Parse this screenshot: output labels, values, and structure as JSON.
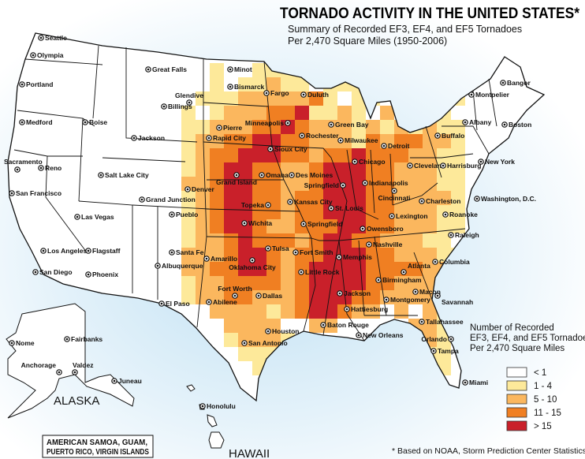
{
  "title": "TORNADO ACTIVITY IN THE UNITED STATES*",
  "subtitle_line1": "Summary  of Recorded EF3, EF4, and EF5 Tornadoes",
  "subtitle_line2": "Per 2,470 Square Miles (1950-2006)",
  "legend": {
    "title_line1": "Number of Recorded",
    "title_line2": "EF3, EF4, and EF5 Tornadoes",
    "title_line3": "Per 2,470 Square Miles",
    "items": [
      {
        "label": "< 1",
        "color": "#ffffff"
      },
      {
        "label": "1 - 4",
        "color": "#fde99a"
      },
      {
        "label": "5 - 10",
        "color": "#fbb75e"
      },
      {
        "label": "11 - 15",
        "color": "#f07f22"
      },
      {
        "label": "> 15",
        "color": "#c9202a"
      }
    ]
  },
  "heat_grid_levels": [
    "..1..1111..1........",
    "..1.11211.111..1.1..",
    ".1112222231.11..1.11",
    "1.12223341121.2.1.1.",
    "11222334322212121211",
    "12233443322213233221",
    "12334443323343332211",
    "12344332234443322211",
    "22344332234443322211",
    "12344332334443322221",
    "12344332334443322211",
    "12344322333443322211",
    "1223433323443322211.",
    "22234432334443322211",
    "22334432344443333221",
    "12233332344443322211",
    "1223322234443322221.",
    "..222212344322.2.21.",
    "...2222..22.....221.",
    "...12221.........21.",
    "....1111.........11.",
    ".....11...........1."
  ],
  "cities": [
    "Seattle",
    "Olympia",
    "Portland",
    "Medford",
    "Boise",
    "Sacramento",
    "Reno",
    "San Francisco",
    "Las Vegas",
    "Los Angeles",
    "San Diego",
    "Salt Lake City",
    "Flagstaff",
    "Phoenix",
    "Great Falls",
    "Glendive",
    "Billings",
    "Jackson",
    "Denver",
    "Grand Junction",
    "Pueblo",
    "Santa Fe",
    "Albuquerque",
    "El Paso",
    "Minot",
    "Bismarck",
    "Fargo",
    "Duluth",
    "Pierre",
    "Rapid City",
    "Minneapolis",
    "Rochester",
    "Green Bay",
    "Milwaukee",
    "Sioux City",
    "Omaha",
    "Des Moines",
    "Grand Island",
    "Chicago",
    "Detroit",
    "Cleveland",
    "Buffalo",
    "Albany",
    "Montpelier",
    "Bangor",
    "Boston",
    "New York",
    "Harrisburg",
    "Washington, D.C.",
    "Springfield",
    "Indianapolis",
    "Cincinnati",
    "Charleston",
    "Roanoke",
    "Raleigh",
    "Topeka",
    "Kansas City",
    "St. Louis",
    "Wichita",
    "Springfield",
    "Lexington",
    "Owensboro",
    "Nashville",
    "Tulsa",
    "Fort Smith",
    "Memphis",
    "Oklahoma City",
    "Amarillo",
    "Little Rock",
    "Birmingham",
    "Atlanta",
    "Columbia",
    "Macon",
    "Savannah",
    "Abilene",
    "Fort Worth",
    "Dallas",
    "Jackson",
    "Montgomery",
    "Hattiesburg",
    "Houston",
    "San Antonio",
    "Baton Rouge",
    "New Orleans",
    "Tallahassee",
    "Orlando",
    "Tampa",
    "Miami",
    "Nome",
    "Fairbanks",
    "Anchorage",
    "Valdez",
    "Juneau",
    "Honolulu"
  ],
  "alaska_label": "ALASKA",
  "hawaii_label": "HAWAII",
  "territories_line1": "AMERICAN SAMOA, GUAM,",
  "territories_line2": "PUERTO RICO, VIRGIN ISLANDS",
  "footnote": "* Based on NOAA, Storm Prediction Center Statistics"
}
